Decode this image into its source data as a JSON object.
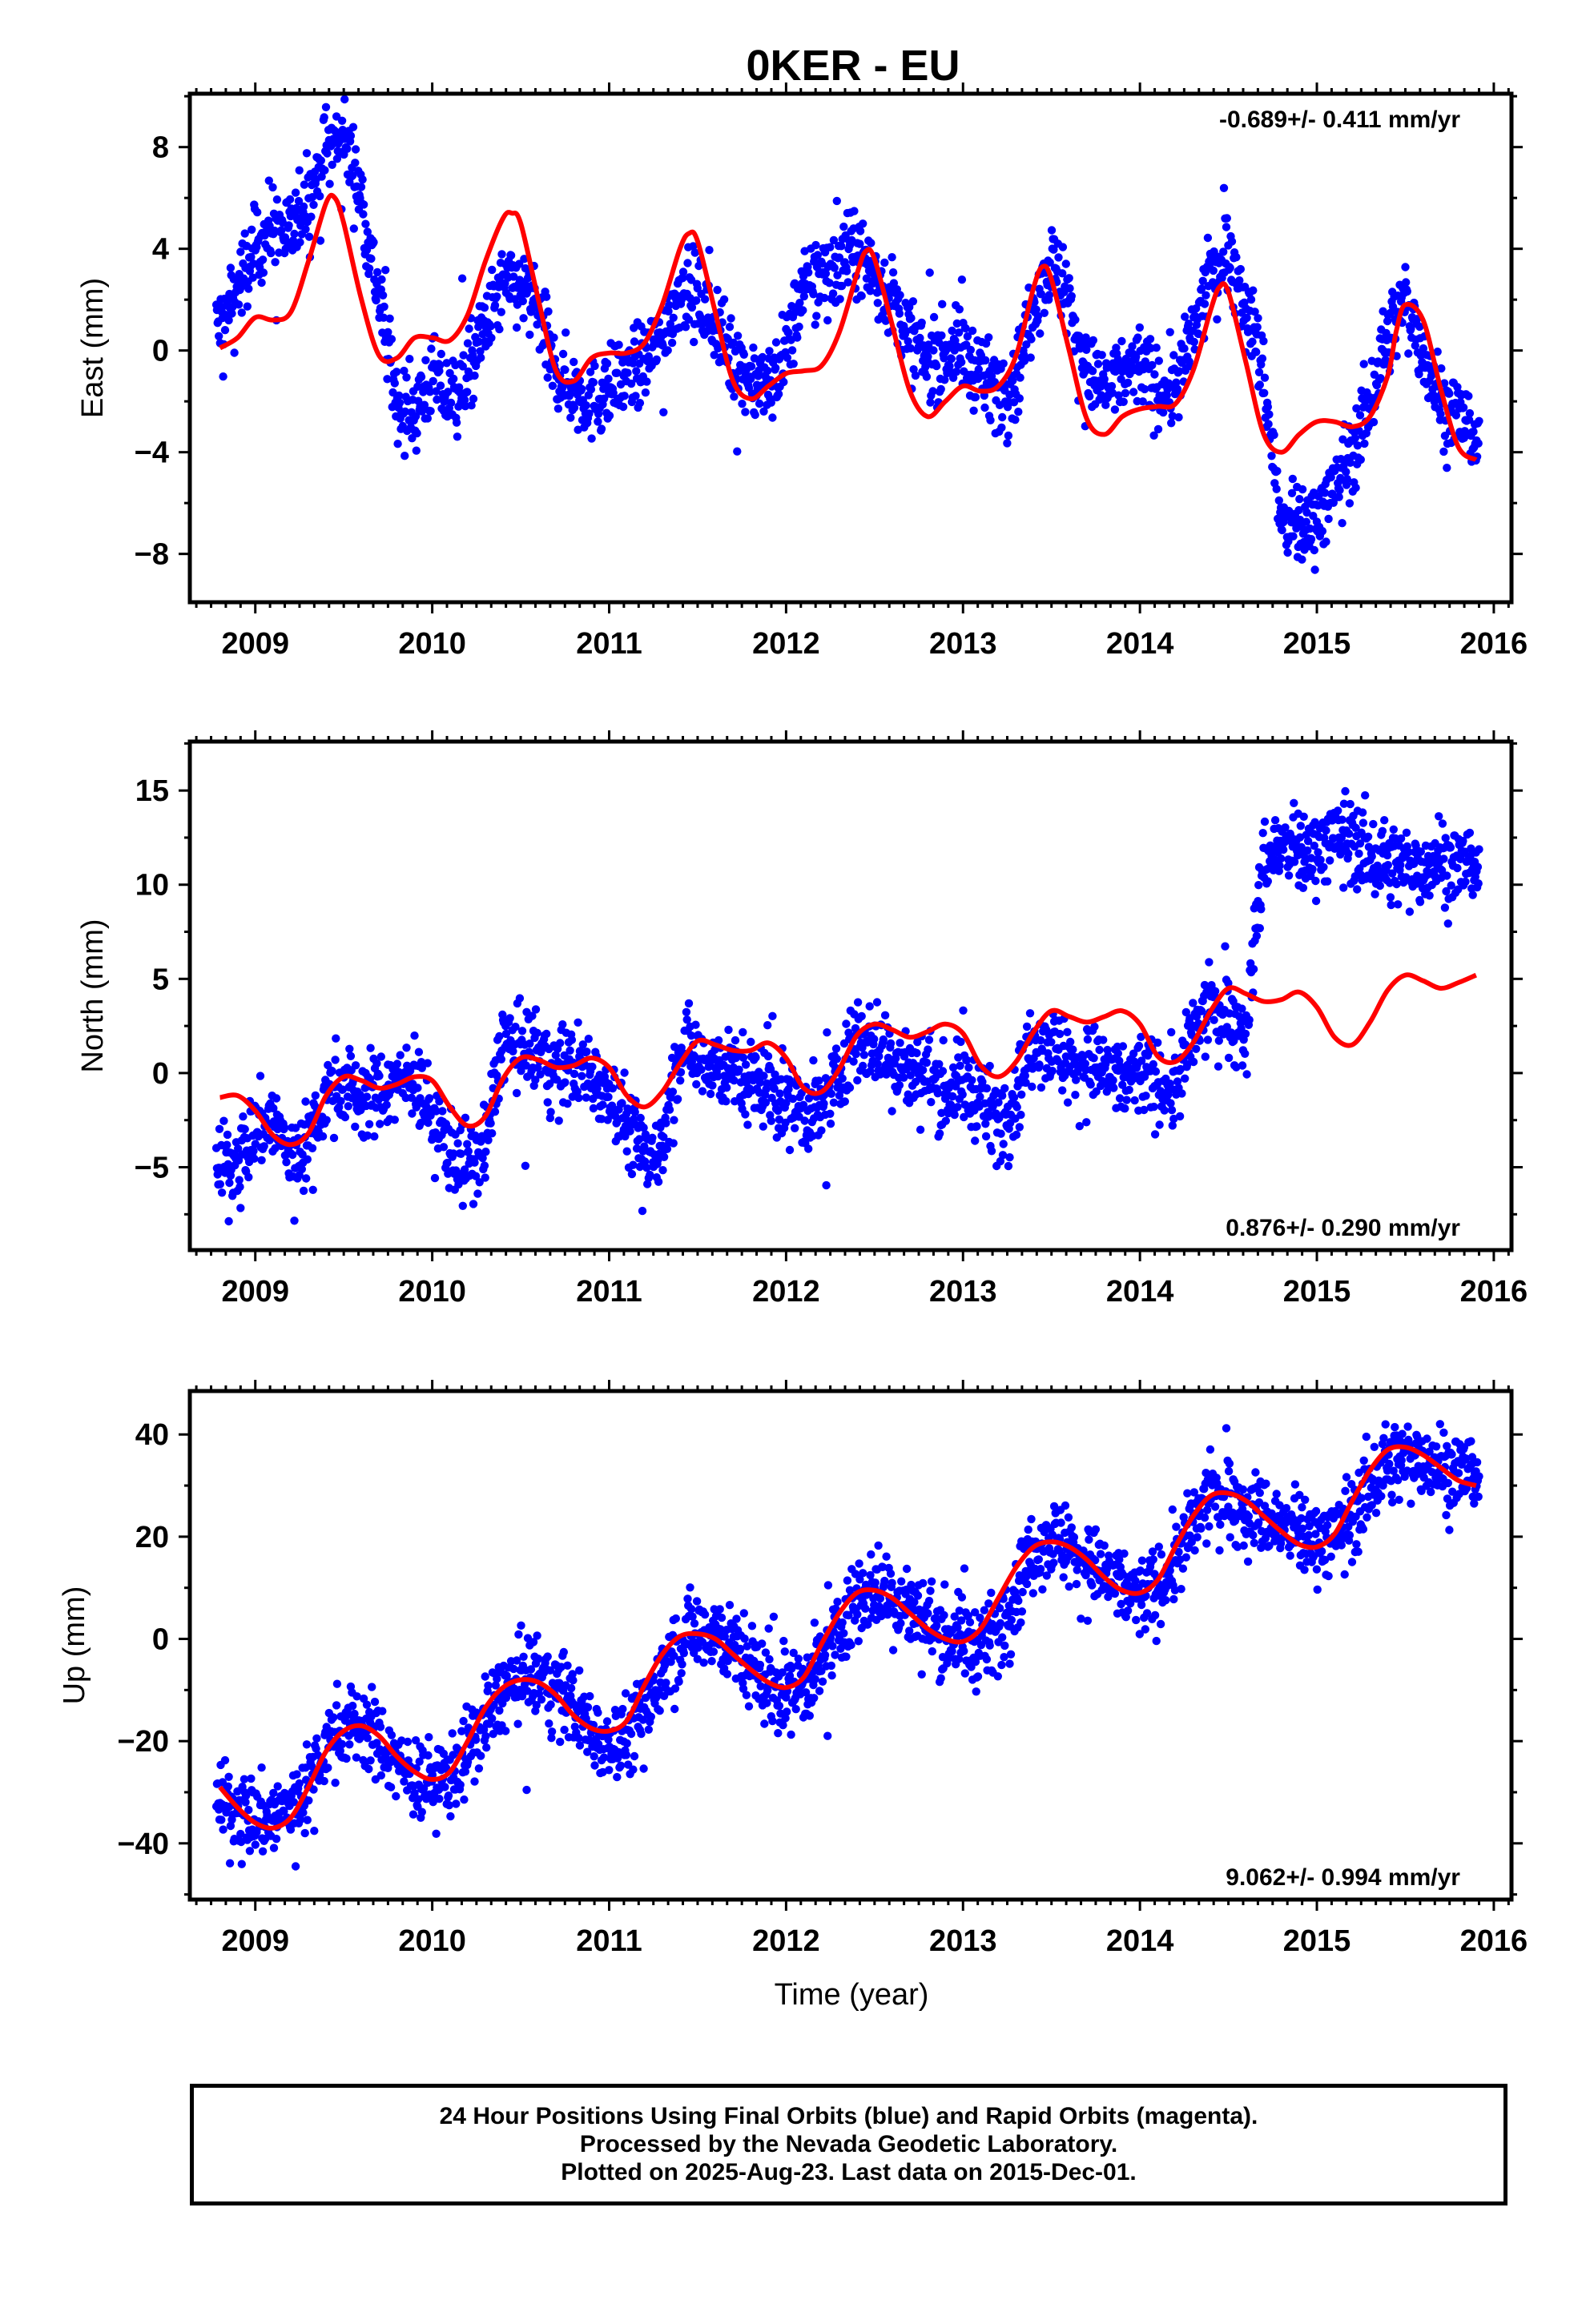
{
  "title": "0KER - EU",
  "xlabel": "Time (year)",
  "footer": {
    "line1": "24 Hour Positions Using Final Orbits (blue) and Rapid Orbits (magenta).",
    "line2": "Processed by the Nevada Geodetic Laboratory.",
    "line3": "Plotted on 2025-Aug-23. Last data on 2015-Dec-01."
  },
  "colors": {
    "observations": "#0000ff",
    "model": "#ff0000",
    "frame": "#000000"
  },
  "chart_data": [
    {
      "type": "scatter",
      "ylabel": "East (mm)",
      "rate_text": "-0.689+/- 0.411 mm/yr",
      "rate_position": "top-right",
      "xlim": [
        2008.63,
        2016.1
      ],
      "ylim": [
        -9.9,
        10.1
      ],
      "x_ticks": [
        2009,
        2010,
        2011,
        2012,
        2013,
        2014,
        2015,
        2016
      ],
      "y_ticks": [
        -8,
        -4,
        0,
        4,
        8
      ],
      "scatter_spread": 1.6,
      "series": [
        {
          "role": "observations",
          "x": [
            2008.8,
            2008.9,
            2009.0,
            2009.1,
            2009.2,
            2009.3,
            2009.4,
            2009.5,
            2009.6,
            2009.7,
            2009.8,
            2009.9,
            2010.0,
            2010.1,
            2010.2,
            2010.3,
            2010.4,
            2010.5,
            2010.6,
            2010.7,
            2010.8,
            2010.9,
            2011.0,
            2011.1,
            2011.2,
            2011.3,
            2011.4,
            2011.5,
            2011.6,
            2011.7,
            2011.8,
            2011.9,
            2012.0,
            2012.1,
            2012.2,
            2012.3,
            2012.4,
            2012.5,
            2012.6,
            2012.7,
            2012.8,
            2012.9,
            2013.0,
            2013.1,
            2013.2,
            2013.3,
            2013.4,
            2013.5,
            2013.6,
            2013.7,
            2013.8,
            2013.9,
            2014.0,
            2014.1,
            2014.2,
            2014.3,
            2014.4,
            2014.5,
            2014.6,
            2014.7,
            2014.8,
            2014.9,
            2015.0,
            2015.1,
            2015.2,
            2015.3,
            2015.4,
            2015.5,
            2015.6,
            2015.7,
            2015.8,
            2015.9
          ],
          "y": [
            1.0,
            2.5,
            4.0,
            5.0,
            4.5,
            6.0,
            8.0,
            8.5,
            6.0,
            2.0,
            -2.0,
            -2.5,
            -1.0,
            -2.0,
            -1.0,
            1.0,
            2.5,
            2.5,
            1.5,
            -1.0,
            -1.5,
            -2.0,
            -1.5,
            -1.0,
            -0.5,
            0.5,
            2.5,
            2.0,
            1.0,
            -0.5,
            -1.0,
            -1.5,
            0.0,
            2.5,
            3.0,
            3.5,
            4.0,
            3.0,
            2.0,
            0.5,
            -0.5,
            0.0,
            0.0,
            -1.0,
            -1.5,
            -1.0,
            2.0,
            3.5,
            2.0,
            -1.0,
            -1.5,
            -1.0,
            -0.5,
            -1.5,
            -1.5,
            0.5,
            3.0,
            4.0,
            2.0,
            -1.0,
            -7.0,
            -7.0,
            -6.5,
            -5.5,
            -4.0,
            -2.0,
            0.5,
            2.0,
            0.0,
            -2.0,
            -2.5,
            -3.5
          ]
        },
        {
          "role": "model",
          "x": [
            2008.8,
            2008.9,
            2009.0,
            2009.1,
            2009.2,
            2009.3,
            2009.4,
            2009.45,
            2009.5,
            2009.6,
            2009.7,
            2009.8,
            2009.9,
            2010.0,
            2010.1,
            2010.2,
            2010.3,
            2010.4,
            2010.45,
            2010.5,
            2010.6,
            2010.7,
            2010.8,
            2010.9,
            2011.0,
            2011.1,
            2011.2,
            2011.3,
            2011.4,
            2011.45,
            2011.5,
            2011.6,
            2011.7,
            2011.8,
            2011.9,
            2012.0,
            2012.1,
            2012.2,
            2012.3,
            2012.4,
            2012.45,
            2012.5,
            2012.6,
            2012.7,
            2012.8,
            2012.9,
            2013.0,
            2013.1,
            2013.2,
            2013.3,
            2013.4,
            2013.45,
            2013.5,
            2013.6,
            2013.7,
            2013.8,
            2013.9,
            2014.0,
            2014.1,
            2014.2,
            2014.3,
            2014.4,
            2014.45,
            2014.5,
            2014.6,
            2014.7,
            2014.8,
            2014.9,
            2015.0,
            2015.1,
            2015.2,
            2015.3,
            2015.4,
            2015.45,
            2015.5,
            2015.6,
            2015.7,
            2015.8,
            2015.9
          ],
          "y": [
            0.1,
            0.5,
            1.3,
            1.2,
            1.5,
            3.5,
            5.8,
            6.0,
            5.0,
            2.0,
            -0.2,
            -0.3,
            0.5,
            0.5,
            0.4,
            1.4,
            3.5,
            5.2,
            5.4,
            5.0,
            2.0,
            -0.8,
            -1.2,
            -0.3,
            -0.1,
            -0.1,
            0.3,
            1.8,
            4.0,
            4.6,
            4.3,
            1.5,
            -1.2,
            -1.9,
            -1.4,
            -0.9,
            -0.8,
            -0.6,
            0.7,
            3.0,
            3.9,
            3.6,
            1.0,
            -1.6,
            -2.6,
            -2.0,
            -1.4,
            -1.6,
            -1.4,
            -0.2,
            2.5,
            3.3,
            2.8,
            0.0,
            -2.7,
            -3.3,
            -2.6,
            -2.3,
            -2.2,
            -2.1,
            -0.8,
            1.6,
            2.5,
            2.3,
            -0.5,
            -3.3,
            -4.0,
            -3.3,
            -2.8,
            -2.8,
            -3.0,
            -2.6,
            -1.0,
            0.8,
            1.8,
            1.2,
            -1.5,
            -3.8,
            -4.3
          ]
        }
      ]
    },
    {
      "type": "scatter",
      "ylabel": "North (mm)",
      "rate_text": "0.876+/- 0.290 mm/yr",
      "rate_position": "bottom-right",
      "xlim": [
        2008.63,
        2016.1
      ],
      "ylim": [
        -9.4,
        17.6
      ],
      "x_ticks": [
        2009,
        2010,
        2011,
        2012,
        2013,
        2014,
        2015,
        2016
      ],
      "y_ticks": [
        -5,
        0,
        5,
        10,
        15
      ],
      "scatter_spread": 2.2,
      "series": [
        {
          "role": "observations",
          "x": [
            2008.8,
            2008.9,
            2009.0,
            2009.1,
            2009.2,
            2009.3,
            2009.4,
            2009.5,
            2009.6,
            2009.7,
            2009.8,
            2009.9,
            2010.0,
            2010.1,
            2010.2,
            2010.3,
            2010.4,
            2010.5,
            2010.6,
            2010.7,
            2010.8,
            2010.9,
            2011.0,
            2011.1,
            2011.2,
            2011.3,
            2011.4,
            2011.5,
            2011.6,
            2011.7,
            2011.8,
            2011.9,
            2012.0,
            2012.1,
            2012.2,
            2012.3,
            2012.4,
            2012.5,
            2012.6,
            2012.7,
            2012.8,
            2012.9,
            2013.0,
            2013.1,
            2013.2,
            2013.3,
            2013.4,
            2013.5,
            2013.6,
            2013.7,
            2013.8,
            2013.9,
            2014.0,
            2014.1,
            2014.2,
            2014.3,
            2014.4,
            2014.5,
            2014.6,
            2014.7,
            2014.8,
            2014.9,
            2015.0,
            2015.1,
            2015.2,
            2015.3,
            2015.4,
            2015.5,
            2015.6,
            2015.7,
            2015.8,
            2015.9
          ],
          "y": [
            -5.0,
            -4.5,
            -3.0,
            -2.5,
            -4.5,
            -3.5,
            -1.0,
            -0.5,
            -1.5,
            -1.0,
            -0.5,
            0.0,
            -2.5,
            -4.0,
            -5.0,
            -4.0,
            2.0,
            1.0,
            1.0,
            0.0,
            0.5,
            0.0,
            -1.0,
            -2.5,
            -4.5,
            -4.0,
            1.5,
            1.0,
            0.5,
            0.0,
            -0.5,
            -0.5,
            -1.5,
            -2.0,
            -2.0,
            0.0,
            2.0,
            1.5,
            1.0,
            0.0,
            0.0,
            -1.0,
            -0.5,
            -1.5,
            -2.5,
            -1.0,
            2.0,
            1.5,
            0.5,
            0.5,
            0.0,
            -0.5,
            0.0,
            -0.5,
            -1.0,
            2.0,
            3.5,
            3.0,
            2.5,
            11.5,
            12.0,
            11.5,
            12.0,
            12.5,
            12.5,
            11.5,
            11.0,
            11.0,
            11.0,
            11.5,
            11.0,
            11.0
          ]
        },
        {
          "role": "model",
          "x": [
            2008.8,
            2008.9,
            2009.0,
            2009.1,
            2009.2,
            2009.3,
            2009.4,
            2009.5,
            2009.6,
            2009.7,
            2009.8,
            2009.9,
            2010.0,
            2010.1,
            2010.2,
            2010.3,
            2010.4,
            2010.5,
            2010.6,
            2010.7,
            2010.8,
            2010.9,
            2011.0,
            2011.1,
            2011.2,
            2011.3,
            2011.4,
            2011.5,
            2011.6,
            2011.7,
            2011.8,
            2011.9,
            2012.0,
            2012.1,
            2012.2,
            2012.3,
            2012.4,
            2012.5,
            2012.6,
            2012.7,
            2012.8,
            2012.9,
            2013.0,
            2013.1,
            2013.2,
            2013.3,
            2013.4,
            2013.5,
            2013.6,
            2013.7,
            2013.8,
            2013.9,
            2014.0,
            2014.1,
            2014.2,
            2014.3,
            2014.4,
            2014.5,
            2014.6,
            2014.7,
            2014.8,
            2014.9,
            2015.0,
            2015.1,
            2015.2,
            2015.3,
            2015.4,
            2015.5,
            2015.6,
            2015.7,
            2015.8,
            2015.9
          ],
          "y": [
            -1.3,
            -1.2,
            -2.0,
            -3.3,
            -3.8,
            -3.2,
            -1.2,
            -0.2,
            -0.4,
            -0.8,
            -0.6,
            -0.2,
            -0.4,
            -1.8,
            -2.8,
            -2.3,
            -0.3,
            0.8,
            0.7,
            0.3,
            0.4,
            0.8,
            0.3,
            -1.2,
            -1.8,
            -1.0,
            0.5,
            1.7,
            1.5,
            1.2,
            1.2,
            1.6,
            0.8,
            -0.8,
            -1.0,
            0.2,
            2.0,
            2.6,
            2.3,
            1.9,
            2.2,
            2.6,
            2.1,
            0.4,
            -0.2,
            0.6,
            2.2,
            3.3,
            3.0,
            2.7,
            3.0,
            3.3,
            2.6,
            0.9,
            0.6,
            1.6,
            3.3,
            4.5,
            4.2,
            3.8,
            3.9,
            4.3,
            3.5,
            1.9,
            1.5,
            2.7,
            4.4,
            5.2,
            4.9,
            4.5,
            4.8,
            5.2
          ]
        }
      ]
    },
    {
      "type": "scatter",
      "ylabel": "Up (mm)",
      "rate_text": "9.062+/- 0.994 mm/yr",
      "rate_position": "bottom-right",
      "xlim": [
        2008.63,
        2016.1
      ],
      "ylim": [
        -51,
        48.5
      ],
      "x_ticks": [
        2009,
        2010,
        2011,
        2012,
        2013,
        2014,
        2015,
        2016
      ],
      "y_ticks": [
        -40,
        -20,
        0,
        20,
        40
      ],
      "scatter_spread": 8,
      "series": [
        {
          "role": "observations",
          "x": [
            2008.8,
            2008.9,
            2009.0,
            2009.1,
            2009.2,
            2009.3,
            2009.4,
            2009.5,
            2009.6,
            2009.7,
            2009.8,
            2009.9,
            2010.0,
            2010.1,
            2010.2,
            2010.3,
            2010.4,
            2010.5,
            2010.6,
            2010.7,
            2010.8,
            2010.9,
            2011.0,
            2011.1,
            2011.2,
            2011.3,
            2011.4,
            2011.5,
            2011.6,
            2011.7,
            2011.8,
            2011.9,
            2012.0,
            2012.1,
            2012.2,
            2012.3,
            2012.4,
            2012.5,
            2012.6,
            2012.7,
            2012.8,
            2012.9,
            2013.0,
            2013.1,
            2013.2,
            2013.3,
            2013.4,
            2013.5,
            2013.6,
            2013.7,
            2013.8,
            2013.9,
            2014.0,
            2014.1,
            2014.2,
            2014.3,
            2014.4,
            2014.5,
            2014.6,
            2014.7,
            2014.8,
            2014.9,
            2015.0,
            2015.1,
            2015.2,
            2015.3,
            2015.4,
            2015.5,
            2015.6,
            2015.7,
            2015.8,
            2015.9
          ],
          "y": [
            -32.0,
            -33.0,
            -35.0,
            -35.0,
            -33.0,
            -28.0,
            -20.0,
            -17.0,
            -17.0,
            -20.0,
            -24.0,
            -27.0,
            -28.0,
            -27.0,
            -22.0,
            -16.0,
            -10.0,
            -8.0,
            -8.0,
            -10.0,
            -13.0,
            -18.0,
            -20.0,
            -19.0,
            -14.0,
            -7.0,
            0.0,
            2.0,
            2.0,
            -2.0,
            -5.0,
            -9.0,
            -10.0,
            -9.0,
            -5.0,
            2.0,
            8.0,
            10.0,
            9.0,
            6.0,
            3.0,
            1.0,
            0.0,
            -2.0,
            2.0,
            10.0,
            18.0,
            20.0,
            18.0,
            15.0,
            12.0,
            10.0,
            8.0,
            10.0,
            15.0,
            22.0,
            28.0,
            28.0,
            26.0,
            24.0,
            22.0,
            20.0,
            20.0,
            20.0,
            24.0,
            30.0,
            34.0,
            35.0,
            36.0,
            34.0,
            33.0,
            32.0
          ]
        },
        {
          "role": "model",
          "x": [
            2008.8,
            2008.9,
            2009.0,
            2009.1,
            2009.2,
            2009.3,
            2009.4,
            2009.5,
            2009.6,
            2009.7,
            2009.8,
            2009.9,
            2010.0,
            2010.1,
            2010.2,
            2010.3,
            2010.4,
            2010.5,
            2010.6,
            2010.7,
            2010.8,
            2010.9,
            2011.0,
            2011.1,
            2011.2,
            2011.3,
            2011.4,
            2011.5,
            2011.6,
            2011.7,
            2011.8,
            2011.9,
            2012.0,
            2012.1,
            2012.2,
            2012.3,
            2012.4,
            2012.5,
            2012.6,
            2012.7,
            2012.8,
            2012.9,
            2013.0,
            2013.1,
            2013.2,
            2013.3,
            2013.4,
            2013.5,
            2013.6,
            2013.7,
            2013.8,
            2013.9,
            2014.0,
            2014.1,
            2014.2,
            2014.3,
            2014.4,
            2014.5,
            2014.6,
            2014.7,
            2014.8,
            2014.9,
            2015.0,
            2015.1,
            2015.2,
            2015.3,
            2015.4,
            2015.5,
            2015.6,
            2015.7,
            2015.8,
            2015.9
          ],
          "y": [
            -29.0,
            -33.0,
            -36.0,
            -37.0,
            -35.0,
            -29.0,
            -22.0,
            -18.0,
            -17.0,
            -19.0,
            -23.0,
            -26.0,
            -27.5,
            -26.0,
            -20.0,
            -13.5,
            -9.5,
            -8.0,
            -8.5,
            -11.0,
            -15.0,
            -17.5,
            -18.0,
            -16.0,
            -9.0,
            -3.0,
            0.5,
            1.0,
            0.0,
            -3.0,
            -6.0,
            -8.5,
            -9.5,
            -7.5,
            -1.0,
            5.0,
            9.0,
            9.5,
            8.0,
            5.0,
            2.0,
            0.0,
            -0.5,
            2.0,
            8.0,
            14.0,
            18.0,
            19.0,
            18.0,
            15.5,
            12.0,
            9.5,
            9.0,
            11.5,
            18.0,
            24.0,
            28.0,
            28.5,
            27.0,
            24.0,
            21.0,
            18.5,
            18.0,
            20.5,
            27.0,
            33.0,
            37.0,
            37.5,
            36.0,
            33.5,
            31.0,
            30.0
          ]
        }
      ]
    }
  ]
}
